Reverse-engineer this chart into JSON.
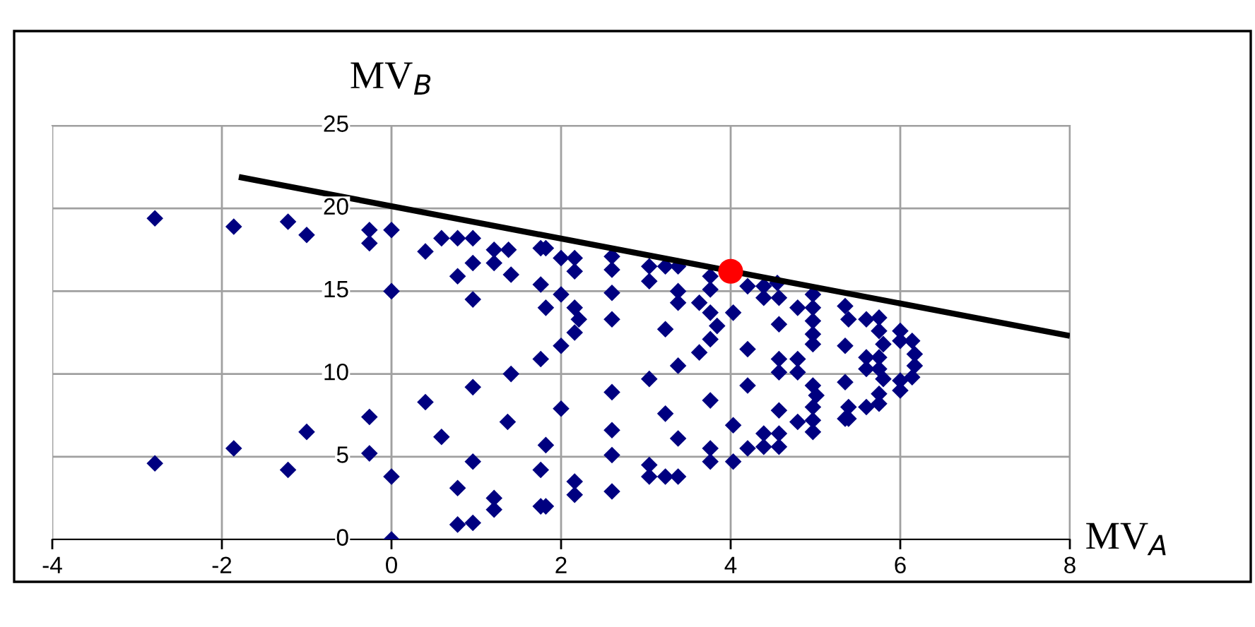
{
  "chart_data": {
    "type": "scatter",
    "xlabel": "MV$_{A}$",
    "ylabel": "MV$_{B}$",
    "xlim": [
      -4,
      8
    ],
    "ylim": [
      0,
      25
    ],
    "xticks": [
      -4,
      -2,
      0,
      2,
      4,
      6,
      8
    ],
    "yticks": [
      0,
      5,
      10,
      15,
      20,
      25
    ],
    "grid": true,
    "legend": false,
    "series": [
      {
        "marker": "diamond",
        "color": "#000080",
        "x": [
          -2.79,
          -1.86,
          -1.22,
          -1.0,
          -0.26,
          -0.26,
          0,
          0,
          -2.79,
          -1.86,
          -1.22,
          -1.0,
          -0.26,
          -0.26,
          0,
          0,
          0.4,
          0.59,
          0.78,
          0.96,
          1.21,
          1.38,
          0.96,
          1.21,
          0.78,
          1.41,
          1.76,
          1.82,
          2.0,
          2.16,
          2.16,
          2.6,
          2.6,
          3.04,
          3.23,
          3.38,
          3.04,
          3.76,
          0.96,
          1.76,
          2.0,
          1.82,
          2.16,
          2.21,
          2.16,
          2.0,
          2.6,
          2.6,
          3.38,
          3.38,
          3.63,
          3.76,
          3.76,
          3.84,
          3.76,
          3.63,
          3.23,
          3.38,
          4.03,
          1.76,
          1.41,
          0.96,
          0.4,
          0.59,
          1.37,
          2.0,
          1.82,
          2.6,
          2.6,
          2.6,
          3.04,
          3.23,
          3.38,
          3.76,
          3.76,
          3.76,
          4.03,
          4.03,
          3.04,
          3.04,
          3.23,
          3.38,
          0.96,
          0.78,
          1.76,
          2.16,
          2.16,
          2.6,
          1.21,
          1.21,
          1.76,
          1.82,
          0.78,
          0.96,
          4.2,
          4.39,
          4.55,
          4.39,
          4.57,
          4.79,
          4.97,
          4.97,
          4.97,
          4.97,
          4.97,
          4.57,
          4.2,
          4.57,
          4.57,
          4.79,
          4.79,
          4.2,
          4.97,
          5.01,
          4.97,
          4.57,
          4.79,
          4.97,
          4.97,
          4.2,
          4.39,
          4.57,
          4.39,
          4.57,
          5.35,
          5.39,
          5.6,
          5.75,
          5.75,
          5.8,
          6.0,
          6.0,
          6.14,
          6.17,
          6.17,
          6.14,
          6.0,
          6.0,
          5.35,
          5.6,
          5.75,
          5.6,
          5.75,
          5.8,
          5.35,
          5.75,
          5.75,
          5.6,
          5.39,
          5.35,
          5.39
        ],
        "values": [
          19.4,
          18.9,
          19.2,
          18.4,
          18.7,
          17.9,
          18.7,
          15.0,
          4.6,
          5.5,
          4.2,
          6.5,
          7.4,
          5.2,
          3.8,
          0,
          17.4,
          18.2,
          18.2,
          18.2,
          17.5,
          17.5,
          16.7,
          16.7,
          15.9,
          16.0,
          17.6,
          17.6,
          17.0,
          17.0,
          16.2,
          17.1,
          16.3,
          16.5,
          16.5,
          16.5,
          15.6,
          15.9,
          14.5,
          15.4,
          14.8,
          14.0,
          14.0,
          13.3,
          12.5,
          11.7,
          14.9,
          13.3,
          15.0,
          14.3,
          14.3,
          15.1,
          13.7,
          12.9,
          12.1,
          11.3,
          12.7,
          10.5,
          13.7,
          10.9,
          10.0,
          9.2,
          8.3,
          6.2,
          7.1,
          7.9,
          5.7,
          8.9,
          6.6,
          5.1,
          9.7,
          7.6,
          6.1,
          8.4,
          5.5,
          4.7,
          6.9,
          4.7,
          4.5,
          3.8,
          3.8,
          3.8,
          4.7,
          3.1,
          4.2,
          3.5,
          2.7,
          2.9,
          2.5,
          1.8,
          2.0,
          2.0,
          0.9,
          1.0,
          15.3,
          15.3,
          15.5,
          14.6,
          14.6,
          14.0,
          14.8,
          14.0,
          13.2,
          12.4,
          11.8,
          13.0,
          11.5,
          10.9,
          10.1,
          10.9,
          10.1,
          9.3,
          9.3,
          8.7,
          8.0,
          7.8,
          7.1,
          7.2,
          6.5,
          5.5,
          6.4,
          6.4,
          5.6,
          5.6,
          14.1,
          13.3,
          13.3,
          13.4,
          12.6,
          11.8,
          12.6,
          12.0,
          12.0,
          11.2,
          10.5,
          9.8,
          9.6,
          9.0,
          11.7,
          11.0,
          11.0,
          10.3,
          10.3,
          9.7,
          9.5,
          8.8,
          8.2,
          8.0,
          8.0,
          7.3,
          7.3
        ]
      },
      {
        "type": "line",
        "color": "#000000",
        "marker": "none",
        "line_style": "solid",
        "x": [
          -1.8,
          8
        ],
        "values": [
          21.9,
          12.3
        ]
      },
      {
        "marker": "circle",
        "color": "#ff0000",
        "x": [
          4.0
        ],
        "values": [
          16.2
        ]
      }
    ]
  }
}
